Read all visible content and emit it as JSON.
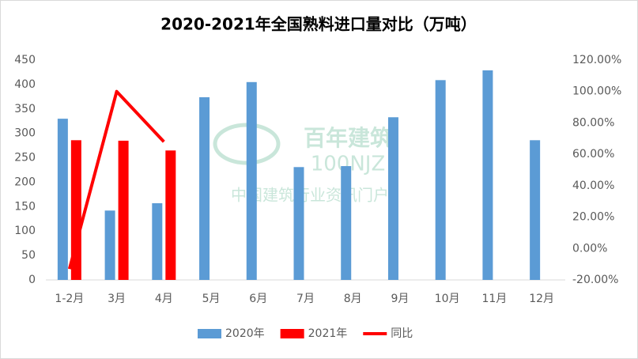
{
  "chart_data": {
    "type": "bar",
    "title": "2020-2021年全国熟料进口量对比（万吨）",
    "watermark": [
      "百年建筑",
      "100NJZ",
      "中国建筑行业资讯门户"
    ],
    "categories": [
      "1-2月",
      "3月",
      "4月",
      "5月",
      "6月",
      "7月",
      "8月",
      "9月",
      "10月",
      "11月",
      "12月"
    ],
    "series": [
      {
        "name": "2020年",
        "type": "bar",
        "color": "#5b9bd5",
        "values": [
          330,
          142,
          157,
          374,
          405,
          231,
          233,
          333,
          409,
          429,
          286
        ]
      },
      {
        "name": "2021年",
        "type": "bar",
        "color": "#ff0000",
        "values": [
          286,
          285,
          265,
          null,
          null,
          null,
          null,
          null,
          null,
          null,
          null
        ]
      },
      {
        "name": "同比",
        "type": "line",
        "axis": "y2",
        "color": "#ff0000",
        "values": [
          -13,
          100,
          68,
          null,
          null,
          null,
          null,
          null,
          null,
          null,
          null
        ]
      }
    ],
    "ylim": [
      0,
      450
    ],
    "yticks": [
      0,
      50,
      100,
      150,
      200,
      250,
      300,
      350,
      400,
      450
    ],
    "y2lim": [
      -20,
      120
    ],
    "y2ticks": [
      {
        "value": -20,
        "label": "-20.00%"
      },
      {
        "value": 0,
        "label": "0.00%"
      },
      {
        "value": 20,
        "label": "20.00%"
      },
      {
        "value": 40,
        "label": "40.00%"
      },
      {
        "value": 60,
        "label": "60.00%"
      },
      {
        "value": 80,
        "label": "80.00%"
      },
      {
        "value": 100,
        "label": "100.00%"
      },
      {
        "value": 120,
        "label": "120.00%"
      }
    ],
    "grid": false,
    "legend": "bottom"
  }
}
